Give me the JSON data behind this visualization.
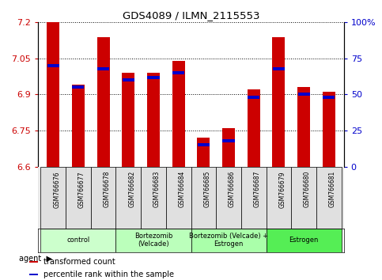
{
  "title": "GDS4089 / ILMN_2115553",
  "samples": [
    "GSM766676",
    "GSM766677",
    "GSM766678",
    "GSM766682",
    "GSM766683",
    "GSM766684",
    "GSM766685",
    "GSM766686",
    "GSM766687",
    "GSM766679",
    "GSM766680",
    "GSM766681"
  ],
  "transformed_count": [
    7.2,
    6.94,
    7.14,
    6.99,
    6.99,
    7.04,
    6.72,
    6.76,
    6.92,
    7.14,
    6.93,
    6.91
  ],
  "percentile_rank": [
    70,
    55,
    68,
    60,
    62,
    65,
    15,
    18,
    48,
    68,
    50,
    48
  ],
  "ylim_left": [
    6.6,
    7.2
  ],
  "ylim_right": [
    0,
    100
  ],
  "yticks_left": [
    6.6,
    6.75,
    6.9,
    7.05,
    7.2
  ],
  "yticks_right": [
    0,
    25,
    50,
    75,
    100
  ],
  "ytick_labels_left": [
    "6.6",
    "6.75",
    "6.9",
    "7.05",
    "7.2"
  ],
  "ytick_labels_right": [
    "0",
    "25",
    "50",
    "75",
    "100%"
  ],
  "bar_color": "#CC0000",
  "percentile_color": "#0000CC",
  "groups": [
    {
      "label": "control",
      "indices": [
        0,
        1,
        2
      ],
      "color": "#ccffcc"
    },
    {
      "label": "Bortezomib\n(Velcade)",
      "indices": [
        3,
        4,
        5
      ],
      "color": "#99ff99"
    },
    {
      "label": "Bortezomib (Velcade) +\nEstrogen",
      "indices": [
        6,
        7,
        8
      ],
      "color": "#66ee66"
    },
    {
      "label": "Estrogen",
      "indices": [
        9,
        10,
        11
      ],
      "color": "#33cc33"
    }
  ],
  "legend_bar_label": "transformed count",
  "legend_pct_label": "percentile rank within the sample",
  "agent_label": "agent",
  "bar_width": 0.5,
  "base_value": 6.6,
  "grid_color": "#000000",
  "background_color": "#ffffff",
  "plot_bg": "#ffffff",
  "ylabel_left_color": "#CC0000",
  "ylabel_right_color": "#0000CC"
}
